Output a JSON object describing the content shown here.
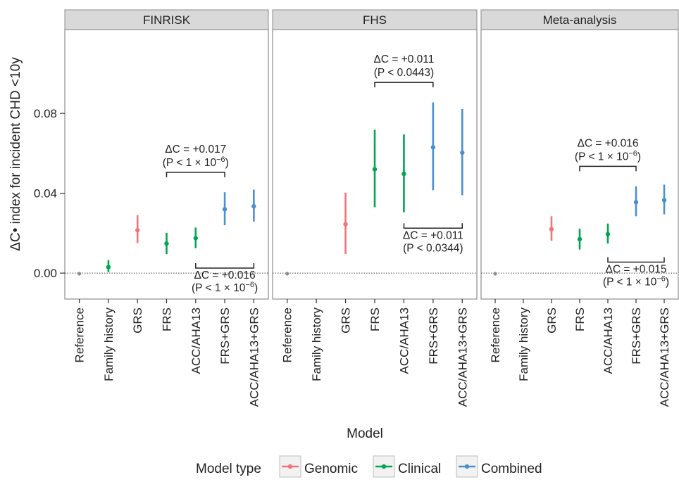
{
  "chart_data": {
    "type": "scatter",
    "style": "point-range, faceted",
    "xlabel": "Model",
    "ylabel": "ΔC• index for incident CHD <10y",
    "ylim": [
      -0.013,
      0.122
    ],
    "yticks": [
      0.0,
      0.04,
      0.08
    ],
    "ytick_labels": [
      "0.00",
      "0.04",
      "0.08"
    ],
    "reference_line_y": 0,
    "categories": [
      "Reference",
      "Family history",
      "GRS",
      "FRS",
      "ACC/AHA13",
      "FRS+GRS",
      "ACC/AHA13+GRS"
    ],
    "colors": {
      "Reference": "#8c8c8c",
      "Genomic": "#f0757a",
      "Clinical": "#00a651",
      "Combined": "#4b8fce"
    },
    "legend": {
      "title": "Model type",
      "position": "bottom",
      "items": [
        {
          "label": "Genomic",
          "color": "#f0757a"
        },
        {
          "label": "Clinical",
          "color": "#00a651"
        },
        {
          "label": "Combined",
          "color": "#4b8fce"
        }
      ]
    },
    "panels": [
      {
        "name": "FINRISK",
        "points": [
          {
            "model": "Reference",
            "type": "Reference",
            "value": -0.0003,
            "low": -0.0003,
            "high": -0.0003
          },
          {
            "model": "Family history",
            "type": "Clinical",
            "value": 0.003,
            "low": 0.0005,
            "high": 0.0065
          },
          {
            "model": "GRS",
            "type": "Genomic",
            "value": 0.0215,
            "low": 0.015,
            "high": 0.029
          },
          {
            "model": "FRS",
            "type": "Clinical",
            "value": 0.0148,
            "low": 0.0095,
            "high": 0.0202
          },
          {
            "model": "ACC/AHA13",
            "type": "Clinical",
            "value": 0.0175,
            "low": 0.0125,
            "high": 0.0228
          },
          {
            "model": "FRS+GRS",
            "type": "Combined",
            "value": 0.032,
            "low": 0.024,
            "high": 0.0405
          },
          {
            "model": "ACC/AHA13+GRS",
            "type": "Combined",
            "value": 0.0335,
            "low": 0.0258,
            "high": 0.0418
          }
        ],
        "brackets": [
          {
            "from": "FRS",
            "to": "FRS+GRS",
            "side": "above",
            "y": 0.0505,
            "line1": "ΔC = +0.017",
            "line2_prefix": "(P < 1 × 10",
            "line2_exp": "−6",
            "line2_suffix": ")"
          },
          {
            "from": "ACC/AHA13",
            "to": "ACC/AHA13+GRS",
            "side": "below",
            "y": 0.0025,
            "line1": "ΔC = +0.016",
            "line2_prefix": "(P < 1 × 10",
            "line2_exp": "−6",
            "line2_suffix": ")"
          }
        ]
      },
      {
        "name": "FHS",
        "points": [
          {
            "model": "Reference",
            "type": "Reference",
            "value": -0.0003,
            "low": -0.0003,
            "high": -0.0003
          },
          {
            "model": "GRS",
            "type": "Genomic",
            "value": 0.0245,
            "low": 0.0095,
            "high": 0.0403
          },
          {
            "model": "FRS",
            "type": "Clinical",
            "value": 0.052,
            "low": 0.033,
            "high": 0.0718
          },
          {
            "model": "ACC/AHA13",
            "type": "Clinical",
            "value": 0.0497,
            "low": 0.0305,
            "high": 0.0695
          },
          {
            "model": "FRS+GRS",
            "type": "Combined",
            "value": 0.063,
            "low": 0.0415,
            "high": 0.0855
          },
          {
            "model": "ACC/AHA13+GRS",
            "type": "Combined",
            "value": 0.0603,
            "low": 0.039,
            "high": 0.0822
          }
        ],
        "brackets": [
          {
            "from": "FRS",
            "to": "FRS+GRS",
            "side": "above",
            "y": 0.0955,
            "line1": "ΔC = +0.011",
            "line2_prefix": "(P < 0.0443)",
            "line2_exp": "",
            "line2_suffix": ""
          },
          {
            "from": "ACC/AHA13",
            "to": "ACC/AHA13+GRS",
            "side": "below",
            "y": 0.0225,
            "line1": "ΔC = +0.011",
            "line2_prefix": "(P < 0.0344)",
            "line2_exp": "",
            "line2_suffix": ""
          }
        ]
      },
      {
        "name": "Meta-analysis",
        "points": [
          {
            "model": "Reference",
            "type": "Reference",
            "value": -0.0003,
            "low": -0.0003,
            "high": -0.0003
          },
          {
            "model": "GRS",
            "type": "Genomic",
            "value": 0.022,
            "low": 0.0162,
            "high": 0.0285
          },
          {
            "model": "FRS",
            "type": "Clinical",
            "value": 0.017,
            "low": 0.0118,
            "high": 0.0222
          },
          {
            "model": "ACC/AHA13",
            "type": "Clinical",
            "value": 0.0195,
            "low": 0.0148,
            "high": 0.0248
          },
          {
            "model": "FRS+GRS",
            "type": "Combined",
            "value": 0.0355,
            "low": 0.0285,
            "high": 0.0435
          },
          {
            "model": "ACC/AHA13+GRS",
            "type": "Combined",
            "value": 0.0365,
            "low": 0.0295,
            "high": 0.0443
          }
        ],
        "brackets": [
          {
            "from": "FRS",
            "to": "FRS+GRS",
            "side": "above",
            "y": 0.0535,
            "line1": "ΔC = +0.016",
            "line2_prefix": "(P < 1 × 10",
            "line2_exp": "−6",
            "line2_suffix": ")"
          },
          {
            "from": "ACC/AHA13",
            "to": "ACC/AHA13+GRS",
            "side": "below",
            "y": 0.0055,
            "line1": "ΔC = +0.015",
            "line2_prefix": "(P < 1 × 10",
            "line2_exp": "−6",
            "line2_suffix": ")"
          }
        ]
      }
    ]
  }
}
